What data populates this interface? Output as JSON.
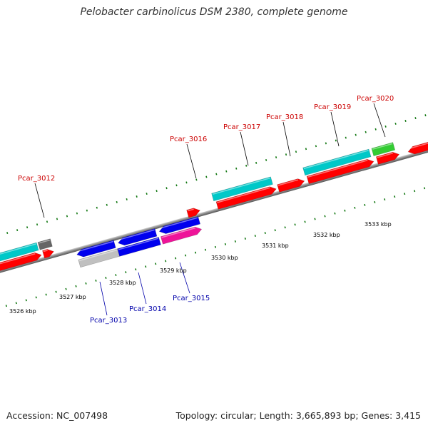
{
  "title": "Pelobacter carbinolicus DSM 2380, complete genome",
  "footer": {
    "accession": "Accession: NC_007498",
    "summary": "Topology: circular; Length: 3,665,893 bp; Genes: 3,415"
  },
  "scale_labels": [
    "3526 kbp",
    "3527 kbp",
    "3528 kbp",
    "3529 kbp",
    "3530 kbp",
    "3531 kbp",
    "3532 kbp",
    "3533 kbp"
  ],
  "gene_labels_top": [
    "Pcar_3012",
    "Pcar_3016",
    "Pcar_3017",
    "Pcar_3018",
    "Pcar_3019",
    "Pcar_3020"
  ],
  "gene_labels_bottom": [
    "Pcar_3013",
    "Pcar_3014",
    "Pcar_3015"
  ],
  "colors": {
    "cds": "#ff0000",
    "gene_teal": "#00c8c8",
    "gene_blue": "#0000ee",
    "gene_magenta": "#ee1499",
    "gene_green": "#33cc33",
    "gene_grey": "#c0c0c0",
    "gene_dark": "#666666",
    "backbone": "#888888",
    "tick": "#117711",
    "label_top": "#cc0000",
    "label_bottom": "#0000aa"
  }
}
